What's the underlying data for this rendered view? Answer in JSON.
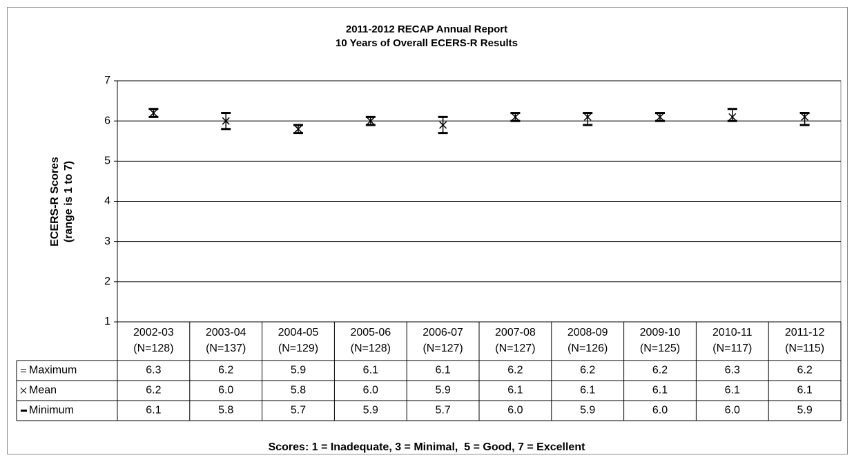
{
  "chart_data": {
    "type": "hilo",
    "title": "2011-2012 RECAP Annual Report",
    "subtitle": "10 Years of Overall ECERS-R Results",
    "y_label": [
      "ECERS-R Scores",
      "(range is 1 to 7)"
    ],
    "categories": [
      "2002-03",
      "2003-04",
      "2004-05",
      "2005-06",
      "2006-07",
      "2007-08",
      "2008-09",
      "2009-10",
      "2010-11",
      "2011-12"
    ],
    "category_counts": [
      "(N=128)",
      "(N=137)",
      "(N=129)",
      "(N=128)",
      "(N=127)",
      "(N=127)",
      "(N=126)",
      "(N=125)",
      "(N=117)",
      "(N=115)"
    ],
    "series": [
      {
        "name": "Maximum",
        "color": "#000000",
        "values": [
          6.3,
          6.2,
          5.9,
          6.1,
          6.1,
          6.2,
          6.2,
          6.2,
          6.3,
          6.2
        ],
        "value_labels": [
          "6.3",
          "6.2",
          "5.9",
          "6.1",
          "6.1",
          "6.2",
          "6.2",
          "6.2",
          "6.3",
          "6.2"
        ]
      },
      {
        "name": "Mean",
        "color": "#000000",
        "values": [
          6.2,
          6,
          5.8,
          6,
          5.9,
          6.1,
          6.1,
          6.1,
          6.1,
          6.1
        ],
        "value_labels": [
          "6.2",
          "6.0",
          "5.8",
          "6.0",
          "5.9",
          "6.1",
          "6.1",
          "6.1",
          "6.1",
          "6.1"
        ]
      },
      {
        "name": "Minimum",
        "color": "#000000",
        "values": [
          6.1,
          5.8,
          5.7,
          5.9,
          5.7,
          6,
          5.9,
          6,
          6,
          5.9
        ],
        "value_labels": [
          "6.1",
          "5.8",
          "5.7",
          "5.9",
          "5.7",
          "6.0",
          "5.9",
          "6.0",
          "6.0",
          "5.9"
        ]
      }
    ],
    "ylim": [
      1,
      7
    ],
    "yticks": [
      1,
      2,
      3,
      4,
      5,
      6,
      7
    ],
    "grid": true,
    "note": "Scores: 1 = Inadequate, 3 = Minimal,  5 = Good, 7 = Excellent"
  }
}
